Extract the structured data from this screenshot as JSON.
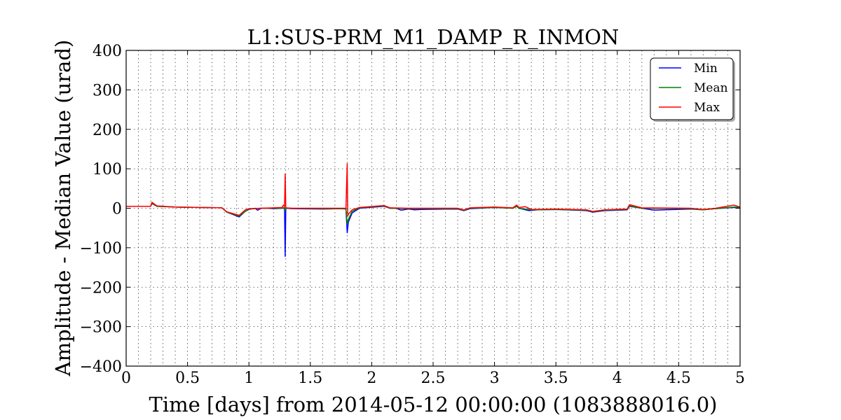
{
  "chart_data": {
    "type": "line",
    "title": "L1:SUS-PRM_M1_DAMP_R_INMON",
    "xlabel": "Time [days] from 2014-05-12 00:00:00 (1083888016.0)",
    "ylabel": "Amplitude - Median Value (urad)",
    "xlim": [
      0,
      5
    ],
    "ylim": [
      -400,
      400
    ],
    "xticks": [
      0,
      0.5,
      1,
      1.5,
      2,
      2.5,
      3,
      3.5,
      4,
      4.5,
      5
    ],
    "xtick_labels": [
      "0",
      "0.5",
      "1",
      "1.5",
      "2",
      "2.5",
      "3",
      "3.5",
      "4",
      "4.5",
      "5"
    ],
    "x_minor_step": 0.1,
    "yticks": [
      -400,
      -300,
      -200,
      -100,
      0,
      100,
      200,
      300,
      400
    ],
    "ytick_labels": [
      "−400",
      "−300",
      "−200",
      "−100",
      "0",
      "100",
      "200",
      "300",
      "400"
    ],
    "grid": true,
    "legend_position": "top-right",
    "series": [
      {
        "name": "Min",
        "color": "#0000ff",
        "points": [
          [
            0,
            5
          ],
          [
            0.2,
            5
          ],
          [
            0.21,
            12
          ],
          [
            0.25,
            5
          ],
          [
            0.4,
            3
          ],
          [
            0.6,
            2
          ],
          [
            0.78,
            1
          ],
          [
            0.82,
            -10
          ],
          [
            0.92,
            -22
          ],
          [
            0.97,
            -8
          ],
          [
            1.0,
            -3
          ],
          [
            1.05,
            0
          ],
          [
            1.07,
            -5
          ],
          [
            1.1,
            0
          ],
          [
            1.15,
            0
          ],
          [
            1.2,
            -1
          ],
          [
            1.27,
            0
          ],
          [
            1.29,
            0
          ],
          [
            1.295,
            -122
          ],
          [
            1.3,
            0
          ],
          [
            1.35,
            -1
          ],
          [
            1.6,
            -2
          ],
          [
            1.75,
            -1
          ],
          [
            1.79,
            -2
          ],
          [
            1.8,
            -62
          ],
          [
            1.81,
            -35
          ],
          [
            1.84,
            -12
          ],
          [
            1.9,
            0
          ],
          [
            2.1,
            5
          ],
          [
            2.15,
            0
          ],
          [
            2.2,
            0
          ],
          [
            2.24,
            -5
          ],
          [
            2.3,
            -2
          ],
          [
            2.35,
            -4
          ],
          [
            2.4,
            -3
          ],
          [
            2.7,
            -2
          ],
          [
            2.75,
            -6
          ],
          [
            2.8,
            -1
          ],
          [
            3.0,
            2
          ],
          [
            3.15,
            0
          ],
          [
            3.18,
            5
          ],
          [
            3.2,
            0
          ],
          [
            3.28,
            -6
          ],
          [
            3.35,
            -4
          ],
          [
            3.5,
            -3
          ],
          [
            3.75,
            -6
          ],
          [
            3.8,
            -10
          ],
          [
            3.9,
            -6
          ],
          [
            4.0,
            -5
          ],
          [
            4.08,
            -4
          ],
          [
            4.1,
            5
          ],
          [
            4.2,
            0
          ],
          [
            4.3,
            -5
          ],
          [
            4.38,
            -4
          ],
          [
            4.6,
            -2
          ],
          [
            4.7,
            -4
          ],
          [
            4.75,
            -2
          ],
          [
            4.8,
            -1
          ],
          [
            4.85,
            0
          ],
          [
            4.95,
            2
          ],
          [
            5.0,
            1
          ]
        ]
      },
      {
        "name": "Mean",
        "color": "#008000",
        "points": [
          [
            0,
            5
          ],
          [
            0.2,
            5
          ],
          [
            0.21,
            13
          ],
          [
            0.25,
            5
          ],
          [
            0.4,
            3
          ],
          [
            0.6,
            2
          ],
          [
            0.78,
            1
          ],
          [
            0.82,
            -10
          ],
          [
            0.92,
            -20
          ],
          [
            0.97,
            -8
          ],
          [
            1.0,
            -2
          ],
          [
            1.1,
            0
          ],
          [
            1.2,
            0
          ],
          [
            1.27,
            0
          ],
          [
            1.29,
            2
          ],
          [
            1.295,
            -5
          ],
          [
            1.3,
            0
          ],
          [
            1.6,
            -1
          ],
          [
            1.79,
            -1
          ],
          [
            1.8,
            -40
          ],
          [
            1.81,
            -28
          ],
          [
            1.84,
            -8
          ],
          [
            1.9,
            1
          ],
          [
            2.1,
            6
          ],
          [
            2.15,
            0
          ],
          [
            2.3,
            -1
          ],
          [
            2.7,
            -1
          ],
          [
            2.75,
            -5
          ],
          [
            2.8,
            0
          ],
          [
            3.0,
            2
          ],
          [
            3.15,
            0
          ],
          [
            3.18,
            5
          ],
          [
            3.2,
            0
          ],
          [
            3.3,
            -4
          ],
          [
            3.5,
            -3
          ],
          [
            3.75,
            -5
          ],
          [
            3.8,
            -9
          ],
          [
            3.9,
            -5
          ],
          [
            4.08,
            -3
          ],
          [
            4.1,
            6
          ],
          [
            4.2,
            0
          ],
          [
            4.6,
            -1
          ],
          [
            4.7,
            -4
          ],
          [
            4.8,
            -1
          ],
          [
            4.95,
            3
          ],
          [
            5.0,
            2
          ]
        ]
      },
      {
        "name": "Max",
        "color": "#ff0000",
        "points": [
          [
            0,
            5
          ],
          [
            0.2,
            5
          ],
          [
            0.21,
            15
          ],
          [
            0.25,
            6
          ],
          [
            0.4,
            3
          ],
          [
            0.6,
            2
          ],
          [
            0.78,
            1
          ],
          [
            0.82,
            -9
          ],
          [
            0.92,
            -18
          ],
          [
            0.95,
            -10
          ],
          [
            0.97,
            -4
          ],
          [
            1.0,
            -1
          ],
          [
            1.1,
            0
          ],
          [
            1.2,
            1
          ],
          [
            1.27,
            2
          ],
          [
            1.28,
            8
          ],
          [
            1.29,
            4
          ],
          [
            1.295,
            87
          ],
          [
            1.3,
            1
          ],
          [
            1.35,
            0
          ],
          [
            1.6,
            0
          ],
          [
            1.79,
            0
          ],
          [
            1.8,
            113
          ],
          [
            1.805,
            -20
          ],
          [
            1.81,
            -15
          ],
          [
            1.84,
            -4
          ],
          [
            1.9,
            2
          ],
          [
            2.1,
            7
          ],
          [
            2.15,
            1
          ],
          [
            2.3,
            0
          ],
          [
            2.7,
            0
          ],
          [
            2.75,
            -4
          ],
          [
            2.8,
            1
          ],
          [
            3.0,
            3
          ],
          [
            3.15,
            1
          ],
          [
            3.18,
            8
          ],
          [
            3.2,
            2
          ],
          [
            3.25,
            4
          ],
          [
            3.3,
            -3
          ],
          [
            3.5,
            -2
          ],
          [
            3.75,
            -4
          ],
          [
            3.8,
            -8
          ],
          [
            3.9,
            -4
          ],
          [
            4.08,
            -2
          ],
          [
            4.1,
            9
          ],
          [
            4.2,
            1
          ],
          [
            4.6,
            0
          ],
          [
            4.7,
            -3
          ],
          [
            4.8,
            0
          ],
          [
            4.95,
            8
          ],
          [
            5.0,
            3
          ]
        ]
      }
    ]
  }
}
